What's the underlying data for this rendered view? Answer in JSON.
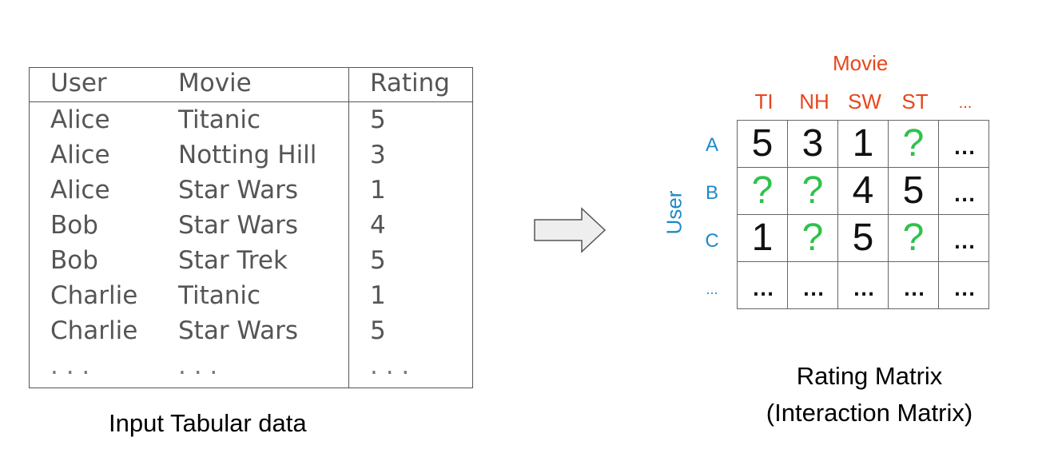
{
  "input_table": {
    "headers": {
      "user": "User",
      "movie": "Movie",
      "rating": "Rating"
    },
    "rows": [
      {
        "user": "Alice",
        "movie": "Titanic",
        "rating": "5"
      },
      {
        "user": "Alice",
        "movie": "Notting Hill",
        "rating": "3"
      },
      {
        "user": "Alice",
        "movie": "Star Wars",
        "rating": "1"
      },
      {
        "user": "Bob",
        "movie": "Star Wars",
        "rating": "4"
      },
      {
        "user": "Bob",
        "movie": "Star Trek",
        "rating": "5"
      },
      {
        "user": "Charlie",
        "movie": "Titanic",
        "rating": "1"
      },
      {
        "user": "Charlie",
        "movie": "Star Wars",
        "rating": "5"
      },
      {
        "user": ". . .",
        "movie": ". . .",
        "rating": ". . ."
      }
    ],
    "caption": "Input Tabular data"
  },
  "arrow": {
    "icon": "right-arrow-icon"
  },
  "matrix": {
    "column_axis_title": "Movie",
    "row_axis_title": "User",
    "column_headers": [
      "TI",
      "NH",
      "SW",
      "ST",
      "..."
    ],
    "row_headers": [
      "A",
      "B",
      "C",
      "..."
    ],
    "cells": [
      [
        "5",
        "3",
        "1",
        "?",
        "..."
      ],
      [
        "?",
        "?",
        "4",
        "5",
        "..."
      ],
      [
        "1",
        "?",
        "5",
        "?",
        "..."
      ],
      [
        "...",
        "...",
        "...",
        "...",
        "..."
      ]
    ],
    "caption_line1": "Rating Matrix",
    "caption_line2": "(Interaction Matrix)"
  },
  "colors": {
    "movie_axis": "#e8461c",
    "user_axis": "#1f88c8",
    "unknown_rating": "#2ec24a",
    "table_text": "#555555"
  }
}
